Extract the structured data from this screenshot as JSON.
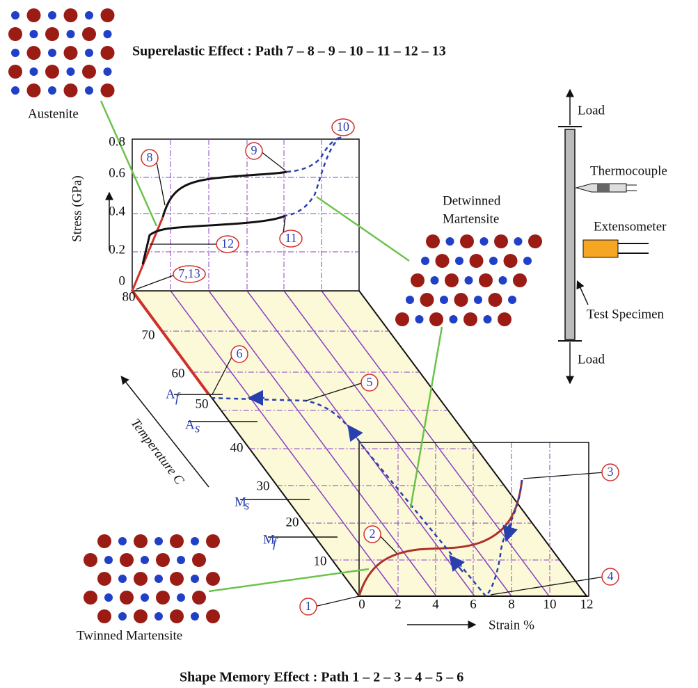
{
  "titles": {
    "superelastic": "Superelastic Effect : Path 7 – 8 – 9 – 10 – 11 – 12 – 13",
    "shape_memory": "Shape Memory Effect : Path 1 – 2 – 3 – 4 – 5 – 6"
  },
  "phases": {
    "austenite": "Austenite",
    "detwinned": [
      "Detwinned",
      "Martensite"
    ],
    "twinned": "Twinned Martensite"
  },
  "stress_axis": {
    "label": "Stress (GPa)",
    "ticks": [
      "0.8",
      "0.6",
      "0.4",
      "0.2",
      "0"
    ]
  },
  "temperature_axis": {
    "label": "Temperature C",
    "ticks": [
      "80",
      "70",
      "60",
      "50",
      "40",
      "30",
      "20",
      "10"
    ]
  },
  "strain_axis": {
    "label": "Strain %",
    "ticks": [
      "0",
      "2",
      "4",
      "6",
      "8",
      "10",
      "12"
    ]
  },
  "transformation_temps": [
    {
      "symbol": "A",
      "sub": "f"
    },
    {
      "symbol": "A",
      "sub": "s"
    },
    {
      "symbol": "M",
      "sub": "s"
    },
    {
      "symbol": "M",
      "sub": "f"
    }
  ],
  "points": [
    "1",
    "2",
    "3",
    "4",
    "5",
    "6",
    "7,13",
    "8",
    "9",
    "10",
    "11",
    "12"
  ],
  "specimen": {
    "load_top": "Load",
    "thermocouple": "Thermocouple",
    "extensometer": "Extensometer",
    "test_specimen": "Test Specimen",
    "load_bottom": "Load"
  }
}
